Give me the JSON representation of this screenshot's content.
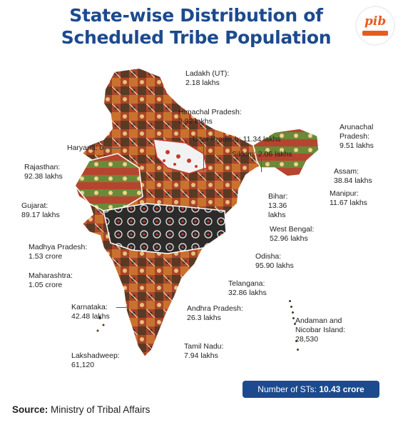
{
  "title_line1": "State-wise Distribution of",
  "title_line2": "Scheduled Tribe Population",
  "logo_text": "pib",
  "states": [
    {
      "name": "Ladakh (UT):",
      "value": "2.18 lakhs"
    },
    {
      "name": "Himachal Pradesh:",
      "value": "3.92 lakhs"
    },
    {
      "name": "Haryana: 0",
      "value": ""
    },
    {
      "name": "Uttar Pradesh: 11.34 lakhs",
      "value": ""
    },
    {
      "name": "Arunachal",
      "value": "Pradesh:",
      "value2": "9.51 lakhs"
    },
    {
      "name": "Sikkim: 2.06 lakhs",
      "value": ""
    },
    {
      "name": "Rajasthan:",
      "value": "92.38 lakhs"
    },
    {
      "name": "Assam:",
      "value": "38.84 lakhs"
    },
    {
      "name": "Manipur:",
      "value": "11.67 lakhs"
    },
    {
      "name": "Bihar:",
      "value": "13.36",
      "value2": "lakhs"
    },
    {
      "name": "Gujarat:",
      "value": "89.17 lakhs"
    },
    {
      "name": "West Bengal:",
      "value": "52.96 lakhs"
    },
    {
      "name": "Madhya Pradesh:",
      "value": "1.53 crore"
    },
    {
      "name": "Odisha:",
      "value": "95.90 lakhs"
    },
    {
      "name": "Maharashtra:",
      "value": "1.05 crore"
    },
    {
      "name": "Telangana:",
      "value": "32.86 lakhs"
    },
    {
      "name": "Karnataka:",
      "value": "42.48 lakhs"
    },
    {
      "name": "Andhra Pradesh:",
      "value": "26.3 lakhs"
    },
    {
      "name": "Andaman and",
      "value": "Nicobar Island:",
      "value2": "28,530"
    },
    {
      "name": "Tamil Nadu:",
      "value": "7.94 lakhs"
    },
    {
      "name": "Lakshadweep:",
      "value": "61,120"
    }
  ],
  "summary_label": "Number of STs:",
  "summary_value": "10.43 crore",
  "source_label": "Source:",
  "source_text": "Ministry of Tribal Affairs",
  "colors": {
    "title": "#1c4a8e",
    "summary_bg": "#1c4a8e",
    "logo_accent": "#e85b1e"
  }
}
